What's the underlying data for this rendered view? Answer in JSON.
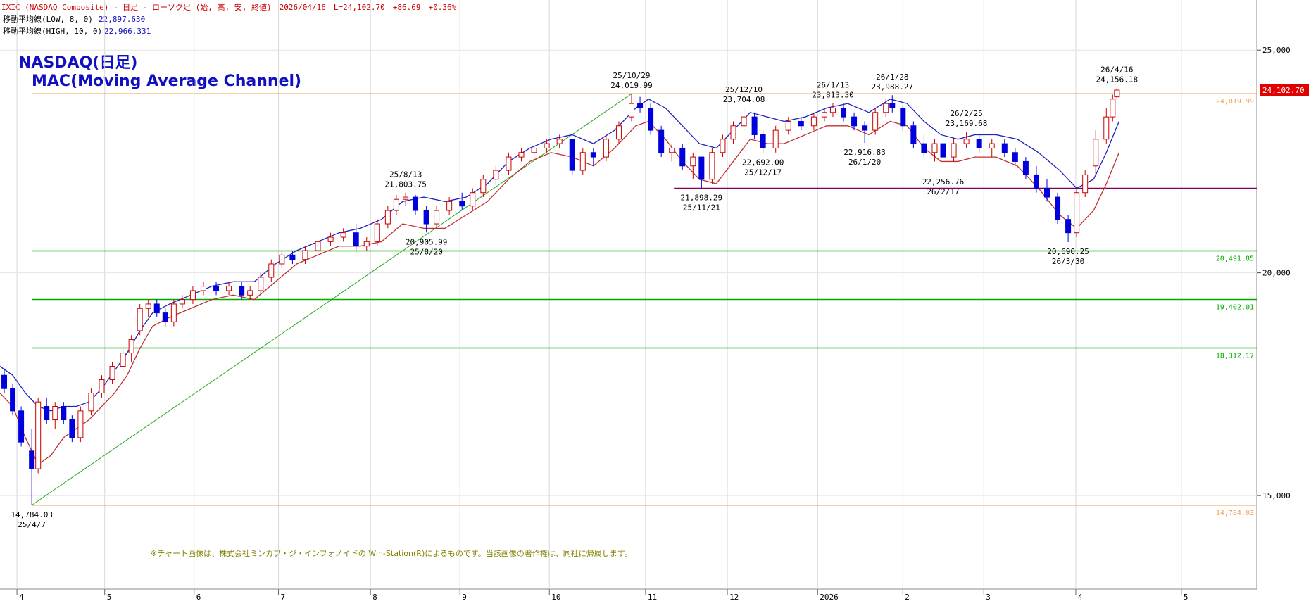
{
  "header": "IXIC (NASDAQ Composite) - 日足 - ローソク足 (始, 高, 安, 終値)　2026/04/16　L=24,102.70　+86.69　+0.36%",
  "chart_data": {
    "type": "candlestick",
    "title": "NASDAQ(日足)",
    "subtitle": "MAC(Moving Average Channel)",
    "note": "※チャート画像は、株式会社ミンカブ・ジ・インフォノイドの Win-Station(R)によるものです。当該画像の著作権は、同社に帰属します。",
    "up_color": "#cc0000",
    "down_color": "#0000dd",
    "candles": {
      "x": [
        1,
        3,
        5,
        7.5,
        9,
        11,
        13,
        15,
        17,
        19,
        21.5,
        24,
        26.5,
        29,
        31,
        33,
        35,
        37,
        39,
        41,
        43,
        45.5,
        48,
        51,
        54,
        57,
        59,
        61.5,
        64,
        66.5,
        69,
        72,
        75,
        78,
        81,
        84,
        86.5,
        89,
        91.5,
        93.5,
        95.7,
        98,
        100.6,
        103,
        106,
        109,
        111.5,
        114,
        117,
        120,
        123,
        126,
        129,
        132,
        135,
        137.5,
        140,
        143,
        146,
        149,
        151,
        153.5,
        156,
        158.5,
        161,
        163.5,
        165.5,
        168,
        170.5,
        173,
        175.5,
        178,
        180,
        183,
        186,
        189,
        192,
        194.5,
        196.5,
        199,
        201.5,
        204,
        206.5,
        209,
        210.5,
        213,
        215.5,
        218,
        220.5,
        222.5,
        225,
        228,
        231,
        234,
        237,
        239.5,
        242,
        244.5,
        247,
        249.5,
        252,
        254,
        256,
        258.5,
        261,
        262.5,
        263.5
      ],
      "open": [
        17700,
        17400,
        16900,
        16000,
        15600,
        17000,
        16700,
        17000,
        16700,
        16300,
        16900,
        17300,
        17600,
        17900,
        18200,
        18700,
        19200,
        19300,
        19100,
        18900,
        19300,
        19400,
        19600,
        19700,
        19600,
        19700,
        19500,
        19600,
        19900,
        20200,
        20400,
        20300,
        20500,
        20700,
        20800,
        20900,
        20600,
        20700,
        21100,
        21400,
        21650,
        21700,
        21400,
        21100,
        21400,
        21600,
        21500,
        21800,
        22100,
        22300,
        22600,
        22700,
        22800,
        22900,
        23000,
        22300,
        22700,
        22600,
        23000,
        23500,
        23800,
        23700,
        23200,
        22700,
        22800,
        22400,
        22600,
        22100,
        22700,
        23000,
        23300,
        23500,
        23100,
        22800,
        23200,
        23400,
        23300,
        23500,
        23600,
        23700,
        23500,
        23300,
        23200,
        23600,
        23800,
        23700,
        23300,
        22900,
        22700,
        22900,
        22600,
        22900,
        23000,
        22800,
        22900,
        22700,
        22500,
        22200,
        21900,
        21700,
        21200,
        20900,
        21800,
        22400,
        23000,
        23500,
        23950
      ],
      "high": [
        17850,
        17500,
        17000,
        16500,
        17200,
        17200,
        17100,
        17100,
        16800,
        17000,
        17400,
        17700,
        18000,
        18300,
        18600,
        19300,
        19400,
        19400,
        19200,
        19400,
        19500,
        19700,
        19800,
        19800,
        19800,
        19800,
        19700,
        20000,
        20300,
        20500,
        20500,
        20600,
        20800,
        20900,
        21000,
        21100,
        20800,
        21200,
        21500,
        21750,
        21803.75,
        21750,
        21500,
        21500,
        21700,
        21800,
        21900,
        22200,
        22400,
        22700,
        22800,
        22900,
        23000,
        23100,
        23000,
        22800,
        22800,
        23100,
        23400,
        24019.99,
        23950,
        23800,
        23300,
        22900,
        22900,
        22700,
        22600,
        22800,
        23100,
        23400,
        23704.08,
        23600,
        23200,
        23300,
        23500,
        23500,
        23600,
        23700,
        23813.3,
        23800,
        23600,
        23400,
        23700,
        23900,
        23988.27,
        23750,
        23400,
        23100,
        23000,
        23000,
        23000,
        23169.68,
        23100,
        23000,
        23000,
        22800,
        22600,
        22400,
        22100,
        21800,
        21300,
        21900,
        22300,
        23200,
        23700,
        24000,
        24156.18
      ],
      "low": [
        17300,
        16800,
        16100,
        14784.03,
        15500,
        16600,
        16500,
        16600,
        16200,
        16200,
        16800,
        17200,
        17500,
        17800,
        18000,
        18600,
        19000,
        19000,
        18800,
        18800,
        19200,
        19300,
        19500,
        19500,
        19500,
        19400,
        19400,
        19500,
        19800,
        20100,
        20200,
        20200,
        20400,
        20600,
        20700,
        20500,
        20500,
        20600,
        21000,
        21300,
        21500,
        21300,
        20905.99,
        21000,
        21300,
        21400,
        21400,
        21700,
        22000,
        22200,
        22500,
        22600,
        22700,
        22800,
        22200,
        22200,
        22400,
        22500,
        22900,
        23400,
        23600,
        23100,
        22600,
        22500,
        22300,
        22100,
        21898.29,
        22000,
        22600,
        22900,
        23200,
        23000,
        22692,
        22700,
        23100,
        23200,
        23200,
        23400,
        23500,
        23400,
        23200,
        22916.83,
        23100,
        23500,
        23600,
        23200,
        22800,
        22600,
        22500,
        22256.76,
        22500,
        22800,
        22700,
        22600,
        22600,
        22400,
        22100,
        21800,
        21600,
        21100,
        20690.25,
        20800,
        21700,
        22200,
        22900,
        23400,
        23900
      ],
      "close": [
        17400,
        16900,
        16200,
        15600,
        17100,
        16700,
        17000,
        16700,
        16300,
        16900,
        17300,
        17600,
        17900,
        18200,
        18500,
        19200,
        19300,
        19100,
        18900,
        19300,
        19400,
        19600,
        19700,
        19600,
        19700,
        19500,
        19600,
        19900,
        20200,
        20400,
        20300,
        20500,
        20700,
        20800,
        20900,
        20600,
        20700,
        21100,
        21400,
        21650,
        21700,
        21400,
        21100,
        21400,
        21600,
        21500,
        21800,
        22100,
        22300,
        22600,
        22700,
        22800,
        22900,
        23000,
        22300,
        22700,
        22600,
        23000,
        23300,
        23800,
        23700,
        23200,
        22700,
        22800,
        22400,
        22600,
        22100,
        22700,
        23000,
        23300,
        23500,
        23100,
        22800,
        23200,
        23400,
        23300,
        23500,
        23600,
        23700,
        23500,
        23300,
        23200,
        23600,
        23800,
        23700,
        23300,
        22900,
        22700,
        22900,
        22600,
        22900,
        23000,
        22800,
        22900,
        22700,
        22500,
        22200,
        21900,
        21700,
        21200,
        20900,
        21800,
        22200,
        23000,
        23500,
        23900,
        24102.7
      ]
    },
    "series": [
      {
        "name": "移動平均線(LOW, 8, 0)",
        "last_label": "22,897.630",
        "color": "#c03030",
        "x": [
          0,
          3,
          6,
          9,
          12,
          15,
          18,
          21,
          24,
          27,
          30,
          33,
          36,
          40,
          45,
          50,
          55,
          60,
          65,
          70,
          75,
          80,
          85,
          90,
          95,
          100,
          105,
          110,
          115,
          120,
          125,
          130,
          135,
          140,
          145,
          150,
          153,
          157,
          161,
          165,
          169,
          173,
          177,
          181,
          185,
          190,
          195,
          200,
          205,
          210,
          214,
          218,
          222,
          226,
          230,
          235,
          240,
          245,
          250,
          254,
          258,
          261,
          264
        ],
        "values": [
          17300,
          17000,
          16300,
          15700,
          15900,
          16300,
          16500,
          16700,
          17000,
          17300,
          17700,
          18300,
          18800,
          19000,
          19200,
          19400,
          19500,
          19400,
          19800,
          20200,
          20400,
          20600,
          20600,
          20700,
          21100,
          21000,
          21000,
          21300,
          21600,
          22100,
          22500,
          22700,
          22600,
          22400,
          22800,
          23300,
          23400,
          23000,
          22500,
          22100,
          22000,
          22500,
          23000,
          22900,
          22900,
          23100,
          23300,
          23300,
          23100,
          23400,
          23300,
          22800,
          22500,
          22500,
          22600,
          22600,
          22400,
          21900,
          21300,
          21000,
          21400,
          22000,
          22700
        ]
      },
      {
        "name": "移動平均線(HIGH, 10, 0)",
        "last_label": "22,966.331",
        "color": "#2020c0",
        "x": [
          0,
          3,
          6,
          9,
          12,
          15,
          18,
          21,
          24,
          27,
          30,
          33,
          36,
          40,
          45,
          50,
          55,
          60,
          65,
          70,
          75,
          80,
          85,
          90,
          95,
          100,
          105,
          110,
          115,
          120,
          125,
          130,
          135,
          140,
          145,
          150,
          153,
          157,
          161,
          165,
          169,
          173,
          177,
          181,
          185,
          190,
          195,
          200,
          205,
          210,
          214,
          218,
          222,
          226,
          230,
          235,
          240,
          245,
          250,
          254,
          258,
          261,
          264
        ],
        "values": [
          17900,
          17700,
          17300,
          17000,
          16900,
          17000,
          17000,
          17100,
          17400,
          17800,
          18200,
          18700,
          19100,
          19300,
          19500,
          19700,
          19800,
          19800,
          20200,
          20500,
          20700,
          20900,
          21000,
          21200,
          21600,
          21700,
          21600,
          21700,
          22000,
          22500,
          22800,
          23000,
          23100,
          22900,
          23200,
          23700,
          23900,
          23700,
          23300,
          22900,
          22800,
          23200,
          23600,
          23500,
          23400,
          23500,
          23700,
          23800,
          23600,
          23900,
          23800,
          23400,
          23100,
          23000,
          23100,
          23100,
          23000,
          22700,
          22300,
          21900,
          22100,
          22700,
          23400
        ]
      }
    ],
    "levels": [
      {
        "value": 24019.99,
        "label": "24,019.99",
        "color": "#f0a050",
        "from": 7.5
      },
      {
        "value": 20491.85,
        "label": "20,491.85",
        "color": "#00aa00",
        "from": 7.5
      },
      {
        "value": 19402.01,
        "label": "19,402.01",
        "color": "#00aa00",
        "from": 7.5
      },
      {
        "value": 18312.17,
        "label": "18,312.17",
        "color": "#00aa00",
        "from": 7.5
      },
      {
        "value": 14784.03,
        "label": "14,784.03",
        "color": "#f0a050",
        "from": 7.5
      },
      {
        "value": 21898.29,
        "color": "#800060",
        "from": 159
      }
    ],
    "trendline": {
      "x": [
        7.5,
        149
      ],
      "values": [
        14784.03,
        24019.99
      ],
      "color": "#22aa22"
    },
    "last": {
      "value": 24102.7,
      "label": "24,102.70"
    },
    "annotations": [
      {
        "candle": 3,
        "side": "low",
        "lines": [
          "14,784.03",
          "25/4/7"
        ]
      },
      {
        "candle": 40,
        "side": "high",
        "lines": [
          "25/8/13",
          "21,803.75"
        ]
      },
      {
        "candle": 42,
        "side": "low",
        "lines": [
          "20,905.99",
          "25/8/20"
        ]
      },
      {
        "candle": 59,
        "side": "high",
        "lines": [
          "25/10/29",
          "24,019.99"
        ]
      },
      {
        "candle": 66,
        "side": "low",
        "lines": [
          "21,898.29",
          "25/11/21"
        ]
      },
      {
        "candle": 70,
        "side": "high",
        "lines": [
          "25/12/10",
          "23,704.08"
        ]
      },
      {
        "candle": 72,
        "side": "low",
        "lines": [
          "22,692.00",
          "25/12/17"
        ]
      },
      {
        "candle": 78,
        "side": "high",
        "lines": [
          "26/1/13",
          "23,813.30"
        ]
      },
      {
        "candle": 81,
        "side": "low",
        "lines": [
          "22,916.83",
          "26/1/20"
        ]
      },
      {
        "candle": 84,
        "side": "high",
        "lines": [
          "26/1/28",
          "23,988.27"
        ]
      },
      {
        "candle": 89,
        "side": "low",
        "lines": [
          "22,256.76",
          "26/2/17"
        ]
      },
      {
        "candle": 91,
        "side": "high",
        "lines": [
          "26/2/25",
          "23,169.68"
        ]
      },
      {
        "candle": 100,
        "side": "low",
        "lines": [
          "20,690.25",
          "26/3/30"
        ]
      },
      {
        "candle": 106,
        "side": "high",
        "lines": [
          "26/4/16",
          "24,156.18"
        ]
      }
    ],
    "xlim": [
      0,
      296.5
    ],
    "xticks": [
      {
        "value": 4,
        "label": "4"
      },
      {
        "value": 24.7,
        "label": "5"
      },
      {
        "value": 45.8,
        "label": "6"
      },
      {
        "value": 65.7,
        "label": "7"
      },
      {
        "value": 87.4,
        "label": "8"
      },
      {
        "value": 108.5,
        "label": "9"
      },
      {
        "value": 129.6,
        "label": "10"
      },
      {
        "value": 152.3,
        "label": "11"
      },
      {
        "value": 171.6,
        "label": "12"
      },
      {
        "value": 192.9,
        "label": "2026"
      },
      {
        "value": 213,
        "label": "2"
      },
      {
        "value": 232.1,
        "label": "3"
      },
      {
        "value": 253.8,
        "label": "4"
      },
      {
        "value": 278.7,
        "label": "5"
      }
    ],
    "ylim": [
      12900,
      26125
    ],
    "yticks": [
      {
        "value": 15000,
        "label": "15,000"
      },
      {
        "value": 20000,
        "label": "20,000"
      },
      {
        "value": 25000,
        "label": "25,000"
      }
    ],
    "grid": true
  }
}
